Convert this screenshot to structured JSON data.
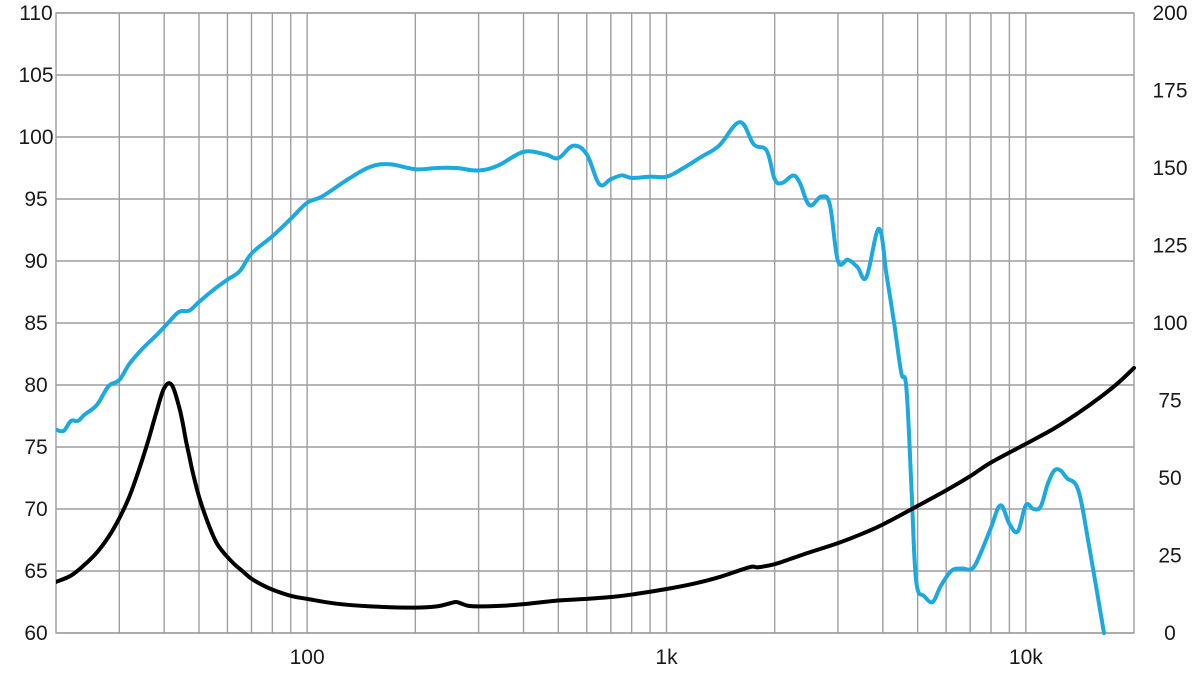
{
  "chart_data": {
    "type": "line",
    "title": "",
    "xlabel": "",
    "ylabel": "",
    "y2label": "",
    "x_scale": "log",
    "xlim": [
      20,
      20000
    ],
    "ylim": [
      60,
      110
    ],
    "y2lim": [
      0,
      200
    ],
    "grid": true,
    "x_tick_labels": [
      {
        "value": 100,
        "label": "100"
      },
      {
        "value": 1000,
        "label": "1k"
      },
      {
        "value": 10000,
        "label": "10k"
      }
    ],
    "y_ticks": [
      {
        "value": 110,
        "label": "110"
      },
      {
        "value": 105,
        "label": "105"
      },
      {
        "value": 100,
        "label": "100"
      },
      {
        "value": 95,
        "label": "95"
      },
      {
        "value": 90,
        "label": "90"
      },
      {
        "value": 85,
        "label": "85"
      },
      {
        "value": 80,
        "label": "80"
      },
      {
        "value": 75,
        "label": "75"
      },
      {
        "value": 70,
        "label": "70"
      },
      {
        "value": 65,
        "label": "65"
      },
      {
        "value": 60,
        "label": "60"
      }
    ],
    "y2_ticks": [
      {
        "value": 200,
        "label": "200"
      },
      {
        "value": 175,
        "label": "175"
      },
      {
        "value": 150,
        "label": "150"
      },
      {
        "value": 125,
        "label": "125"
      },
      {
        "value": 100,
        "label": "100"
      },
      {
        "value": 75,
        "label": "75"
      },
      {
        "value": 50,
        "label": "50"
      },
      {
        "value": 25,
        "label": "25"
      },
      {
        "value": 0,
        "label": "0"
      }
    ],
    "series": [
      {
        "color": "#1ba9df",
        "axis": "left",
        "x": [
          20,
          21,
          22,
          23,
          24,
          26,
          28,
          30,
          32,
          35,
          38,
          41,
          44,
          47,
          50,
          55,
          60,
          65,
          70,
          80,
          90,
          100,
          110,
          130,
          150,
          170,
          200,
          230,
          260,
          300,
          340,
          400,
          460,
          500,
          550,
          600,
          650,
          700,
          750,
          800,
          900,
          1000,
          1100,
          1250,
          1400,
          1600,
          1750,
          1900,
          2000,
          2100,
          2250,
          2350,
          2500,
          2700,
          2850,
          3000,
          3200,
          3400,
          3600,
          3900,
          4100,
          4300,
          4500,
          4650,
          4800,
          4900,
          5000,
          5200,
          5500,
          5800,
          6200,
          6600,
          7100,
          7500,
          8000,
          8500,
          9000,
          9500,
          10000,
          10500,
          11000,
          11500,
          12000,
          12500,
          13000,
          14000,
          15000,
          16500
        ],
        "y": [
          76.4,
          76.3,
          77.1,
          77.1,
          77.6,
          78.4,
          79.9,
          80.4,
          81.7,
          83.0,
          84.0,
          85.0,
          85.9,
          86.0,
          86.7,
          87.7,
          88.5,
          89.2,
          90.6,
          92.0,
          93.4,
          94.7,
          95.2,
          96.6,
          97.6,
          97.8,
          97.4,
          97.5,
          97.5,
          97.3,
          97.7,
          98.8,
          98.6,
          98.3,
          99.3,
          98.6,
          96.2,
          96.6,
          96.9,
          96.7,
          96.8,
          96.8,
          97.4,
          98.4,
          99.3,
          101.2,
          99.4,
          98.9,
          96.6,
          96.3,
          96.9,
          96.3,
          94.5,
          95.2,
          94.5,
          90.0,
          90.1,
          89.5,
          88.7,
          92.6,
          88.8,
          85.0,
          81.0,
          79.8,
          72.0,
          66.0,
          63.5,
          63.0,
          62.5,
          63.8,
          65.0,
          65.2,
          65.2,
          66.5,
          68.5,
          70.3,
          68.8,
          68.2,
          70.3,
          70.0,
          70.2,
          72.0,
          73.1,
          73.1,
          72.5,
          71.5,
          67.0,
          60.0
        ]
      },
      {
        "color": "#000000",
        "axis": "right",
        "x": [
          20,
          22,
          24,
          26,
          28,
          30,
          32,
          34,
          36,
          38,
          40,
          42,
          44,
          45,
          46,
          47,
          48,
          50,
          52,
          54,
          56,
          58,
          60,
          63,
          66,
          70,
          75,
          80,
          90,
          100,
          120,
          150,
          200,
          230,
          250,
          260,
          270,
          280,
          300,
          350,
          400,
          500,
          600,
          700,
          800,
          1000,
          1200,
          1400,
          1700,
          1800,
          2000,
          2200,
          2500,
          3000,
          3500,
          4000,
          5000,
          6000,
          7000,
          8000,
          10000,
          12000,
          14000,
          16000,
          18000,
          20000
        ],
        "y": [
          16.5,
          18.5,
          22.0,
          26.0,
          31.0,
          37.0,
          44.0,
          52.5,
          61.5,
          71.0,
          79.0,
          80.0,
          73.0,
          68.0,
          62.0,
          57.0,
          52.0,
          44.0,
          38.0,
          33.0,
          29.0,
          26.5,
          24.5,
          22.0,
          20.0,
          17.5,
          15.5,
          14.0,
          12.0,
          11.0,
          9.5,
          8.6,
          8.2,
          8.6,
          9.6,
          10.0,
          9.4,
          8.8,
          8.6,
          8.8,
          9.3,
          10.5,
          11.0,
          11.6,
          12.4,
          14.2,
          16.0,
          18.0,
          21.2,
          21.2,
          22.2,
          23.8,
          26.0,
          29.0,
          32.0,
          35.0,
          41.0,
          46.0,
          50.6,
          55.0,
          61.0,
          66.0,
          71.0,
          75.8,
          80.5,
          85.5
        ]
      }
    ]
  }
}
